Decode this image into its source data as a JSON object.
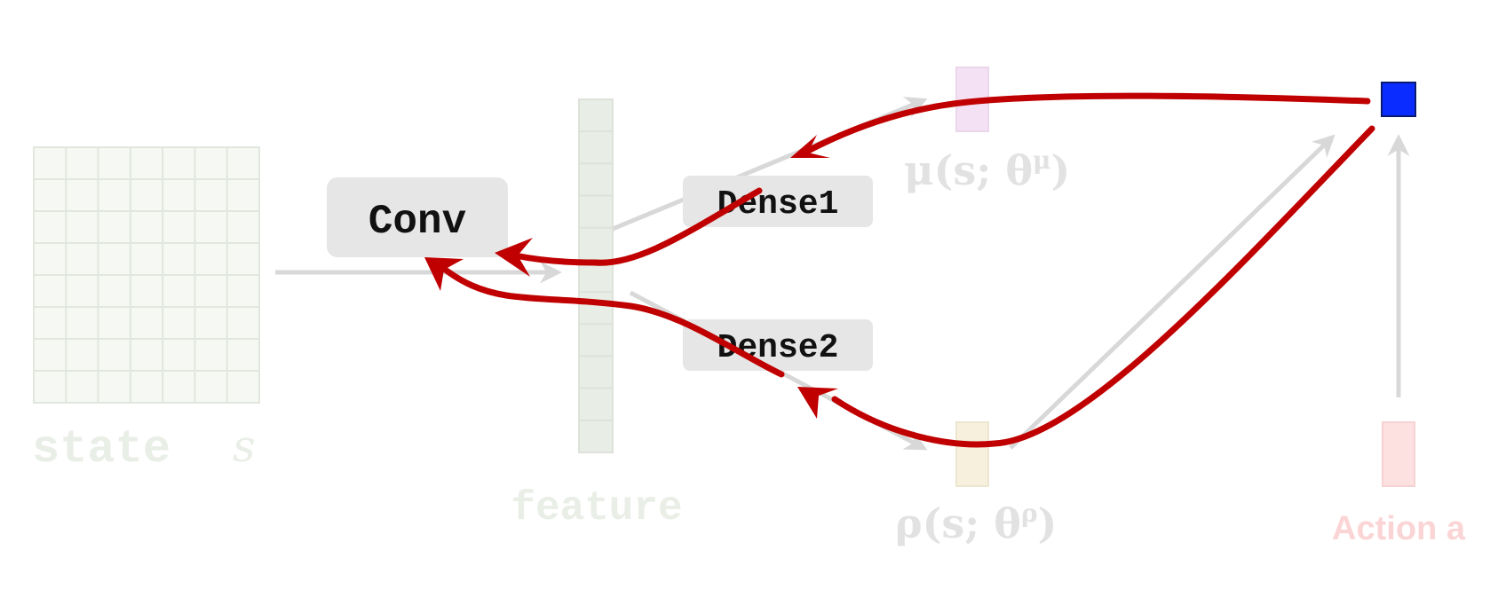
{
  "labels": {
    "state": "state",
    "state_var": "s",
    "feature": "feature",
    "conv": "Conv",
    "dense1": "Dense1",
    "dense2": "Dense2",
    "mu": "μ(s; θ",
    "mu_sup": "μ",
    "rho": "ρ(s; θ",
    "rho_sup": "ρ",
    "close_paren": ")",
    "action": "Action a"
  },
  "colors": {
    "grid_fill": "#f5f8f3",
    "grid_line": "#e2e7de",
    "faded_text": "#e9eee6",
    "box_fill": "#e6e6e6",
    "gray_arrow": "#d8d8d8",
    "mu_fill": "#f4e2f4",
    "rho_fill": "#f6f0dc",
    "action_fill": "#fde1e1",
    "action_text": "#fbd5d5",
    "action_node": "#0a2cff",
    "red_arrow": "#c00000"
  },
  "grid": {
    "rows": 8,
    "cols": 7
  },
  "feature_cells": 11
}
